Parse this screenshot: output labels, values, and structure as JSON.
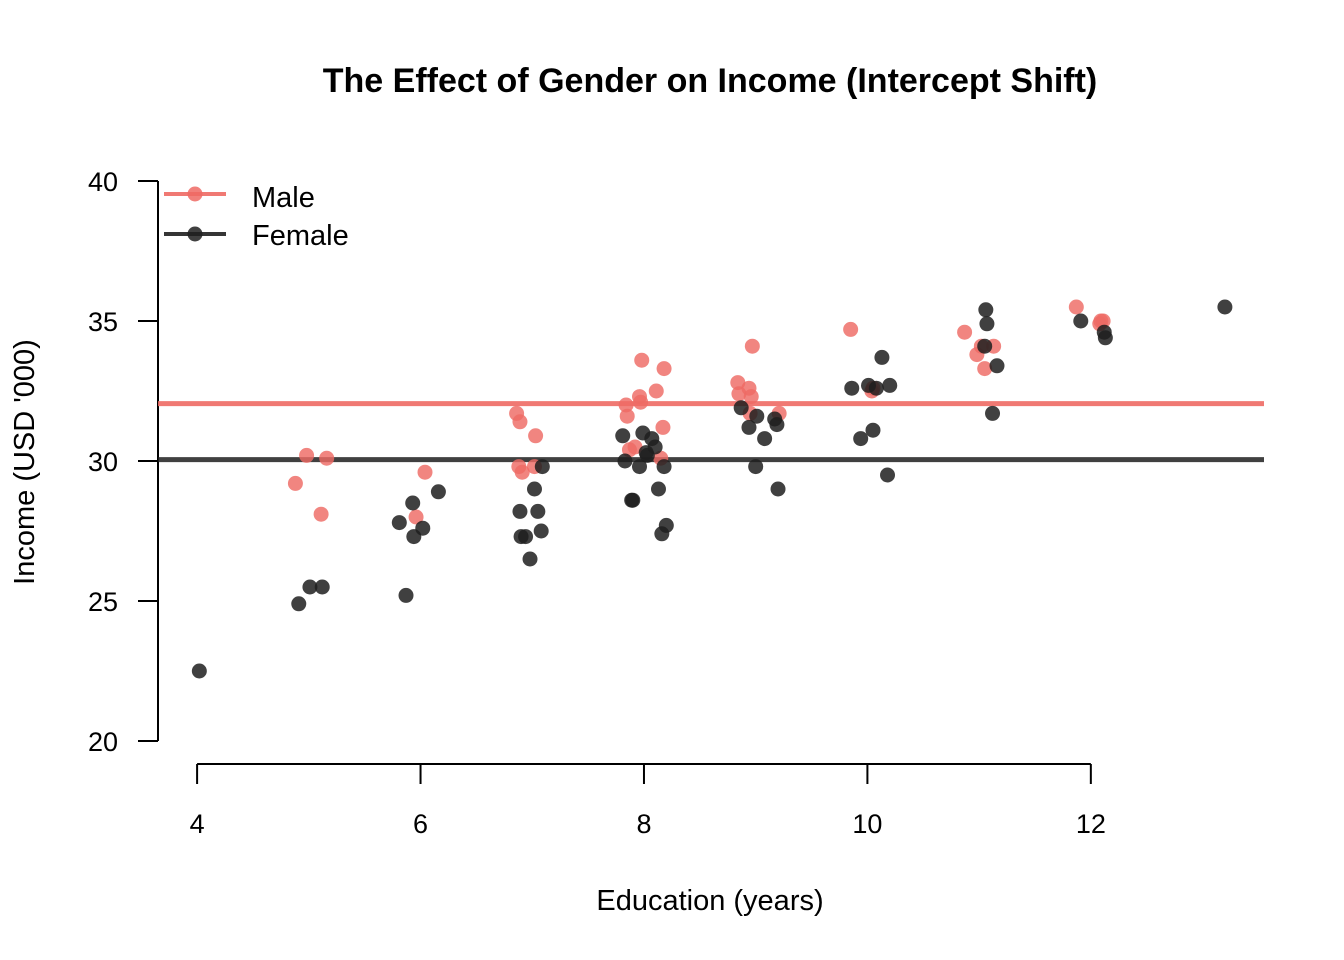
{
  "chart_data": {
    "type": "scatter",
    "title": "The Effect of Gender on Income (Intercept Shift)",
    "xlabel": "Education (years)",
    "ylabel": "Income (USD '000)",
    "xlim": [
      3.65,
      13.55
    ],
    "ylim": [
      20,
      40
    ],
    "x_ticks": [
      4,
      6,
      8,
      10,
      12
    ],
    "y_ticks": [
      20,
      25,
      30,
      35,
      40
    ],
    "x_tick_labels": [
      "4",
      "6",
      "8",
      "10",
      "12"
    ],
    "y_tick_labels": [
      "20",
      "25",
      "30",
      "35",
      "40"
    ],
    "legend_position": "top-left",
    "grid": false,
    "series": [
      {
        "name": "Male",
        "color": "#ee6a64",
        "intercept_line": 32.05,
        "points": [
          [
            4.88,
            29.2
          ],
          [
            4.98,
            30.2
          ],
          [
            5.11,
            28.1
          ],
          [
            5.16,
            30.1
          ],
          [
            5.96,
            28.0
          ],
          [
            6.04,
            29.6
          ],
          [
            6.86,
            31.7
          ],
          [
            6.88,
            29.8
          ],
          [
            6.89,
            31.4
          ],
          [
            6.91,
            29.6
          ],
          [
            7.02,
            29.8
          ],
          [
            7.03,
            30.9
          ],
          [
            7.84,
            32.0
          ],
          [
            7.85,
            31.6
          ],
          [
            7.87,
            30.4
          ],
          [
            7.92,
            30.5
          ],
          [
            7.96,
            32.3
          ],
          [
            7.97,
            32.1
          ],
          [
            7.98,
            33.6
          ],
          [
            8.11,
            32.5
          ],
          [
            8.15,
            30.1
          ],
          [
            8.17,
            31.2
          ],
          [
            8.18,
            33.3
          ],
          [
            8.84,
            32.8
          ],
          [
            8.85,
            32.4
          ],
          [
            8.94,
            32.6
          ],
          [
            8.95,
            31.7
          ],
          [
            8.96,
            32.3
          ],
          [
            8.97,
            34.1
          ],
          [
            9.21,
            31.7
          ],
          [
            9.85,
            34.7
          ],
          [
            10.04,
            32.5
          ],
          [
            10.05,
            32.6
          ],
          [
            10.87,
            34.6
          ],
          [
            10.98,
            33.8
          ],
          [
            11.02,
            34.1
          ],
          [
            11.05,
            33.3
          ],
          [
            11.13,
            34.1
          ],
          [
            11.87,
            35.5
          ],
          [
            12.08,
            34.9
          ],
          [
            12.09,
            35.0
          ],
          [
            12.11,
            35.0
          ]
        ]
      },
      {
        "name": "Female",
        "color": "#1f1f1f",
        "intercept_line": 30.05,
        "points": [
          [
            4.02,
            22.5
          ],
          [
            4.91,
            24.9
          ],
          [
            5.01,
            25.5
          ],
          [
            5.12,
            25.5
          ],
          [
            5.81,
            27.8
          ],
          [
            5.87,
            25.2
          ],
          [
            5.93,
            28.5
          ],
          [
            5.94,
            27.3
          ],
          [
            6.02,
            27.6
          ],
          [
            6.16,
            28.9
          ],
          [
            6.89,
            28.2
          ],
          [
            6.9,
            27.3
          ],
          [
            6.94,
            27.3
          ],
          [
            6.98,
            26.5
          ],
          [
            7.02,
            29.0
          ],
          [
            7.05,
            28.2
          ],
          [
            7.08,
            27.5
          ],
          [
            7.09,
            29.8
          ],
          [
            7.81,
            30.9
          ],
          [
            7.83,
            30.0
          ],
          [
            7.89,
            28.6
          ],
          [
            7.9,
            28.6
          ],
          [
            7.96,
            29.8
          ],
          [
            7.99,
            31.0
          ],
          [
            8.02,
            30.3
          ],
          [
            8.03,
            30.2
          ],
          [
            8.07,
            30.8
          ],
          [
            8.1,
            30.5
          ],
          [
            8.13,
            29.0
          ],
          [
            8.16,
            27.4
          ],
          [
            8.18,
            29.8
          ],
          [
            8.2,
            27.7
          ],
          [
            8.87,
            31.9
          ],
          [
            8.94,
            31.2
          ],
          [
            9.0,
            29.8
          ],
          [
            9.01,
            31.6
          ],
          [
            9.08,
            30.8
          ],
          [
            9.17,
            31.5
          ],
          [
            9.19,
            31.3
          ],
          [
            9.2,
            29.0
          ],
          [
            9.86,
            32.6
          ],
          [
            9.94,
            30.8
          ],
          [
            10.01,
            32.7
          ],
          [
            10.05,
            31.1
          ],
          [
            10.08,
            32.6
          ],
          [
            10.13,
            33.7
          ],
          [
            10.18,
            29.5
          ],
          [
            10.2,
            32.7
          ],
          [
            11.05,
            34.1
          ],
          [
            11.06,
            35.4
          ],
          [
            11.07,
            34.9
          ],
          [
            11.12,
            31.7
          ],
          [
            11.16,
            33.4
          ],
          [
            11.91,
            35.0
          ],
          [
            12.12,
            34.6
          ],
          [
            12.13,
            34.4
          ],
          [
            13.2,
            35.5
          ]
        ]
      }
    ]
  }
}
